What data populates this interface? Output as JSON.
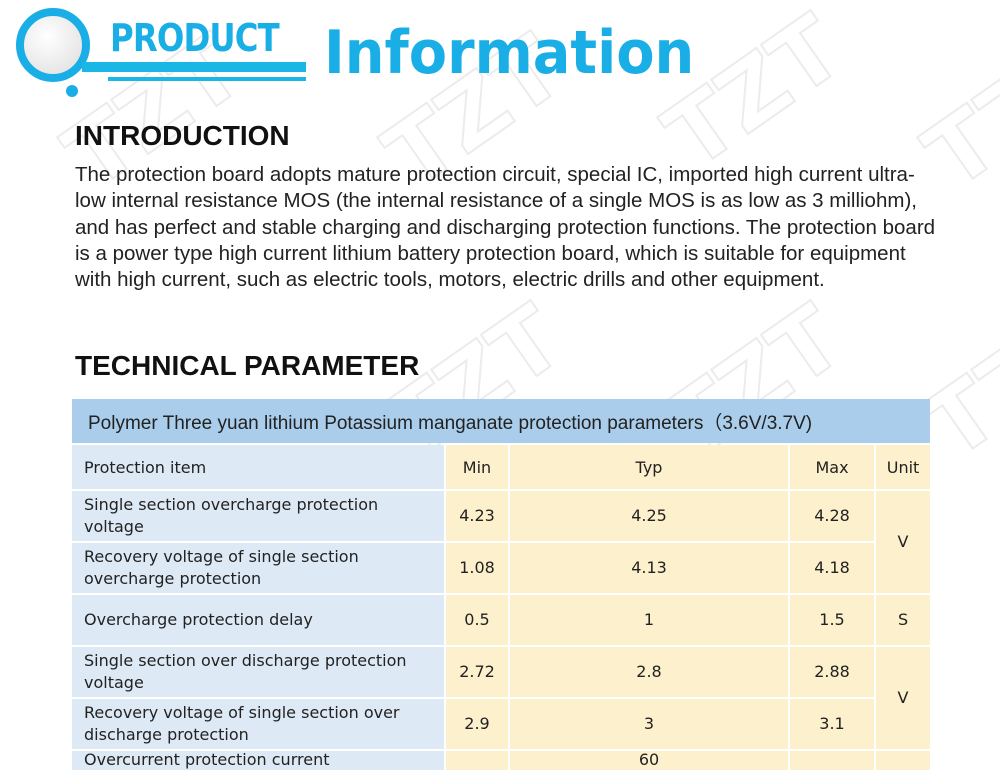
{
  "header": {
    "product": "PRODUCT",
    "information": "Information",
    "watermark": "TZT"
  },
  "introduction": {
    "heading": "INTRODUCTION",
    "text": "The protection board adopts mature protection circuit, special IC, imported high current ultra-low internal resistance MOS (the internal resistance of a single MOS is as low as 3 milliohm), and has perfect and stable charging and discharging protection functions. The protection board is a power type high current lithium battery protection board, which is suitable for equipment with high current, such as electric tools, motors, electric drills and other equipment."
  },
  "technical": {
    "heading": "TECHNICAL PARAMETER",
    "table_title": "Polymer Three yuan lithium Potassium manganate protection parameters（3.6V/3.7V)",
    "columns": [
      "Protection item",
      "Min",
      "Typ",
      "Max",
      "Unit"
    ],
    "rows": [
      {
        "item": "Single section overcharge protection voltage",
        "min": "4.23",
        "typ": "4.25",
        "max": "4.28",
        "unit": "V"
      },
      {
        "item": "Recovery voltage of single section overcharge protection",
        "min": "1.08",
        "typ": "4.13",
        "max": "4.18"
      },
      {
        "item": "Overcharge protection delay",
        "min": "0.5",
        "typ": "1",
        "max": "1.5",
        "unit": "S"
      },
      {
        "item": "Single section over discharge protection voltage",
        "min": "2.72",
        "typ": "2.8",
        "max": "2.88",
        "unit": "V"
      },
      {
        "item": "Recovery voltage of single section over discharge protection",
        "min": "2.9",
        "typ": "3",
        "max": "3.1"
      },
      {
        "item": "Overcurrent protection current",
        "min": "",
        "typ": "60",
        "max": "",
        "unit": ""
      }
    ]
  }
}
